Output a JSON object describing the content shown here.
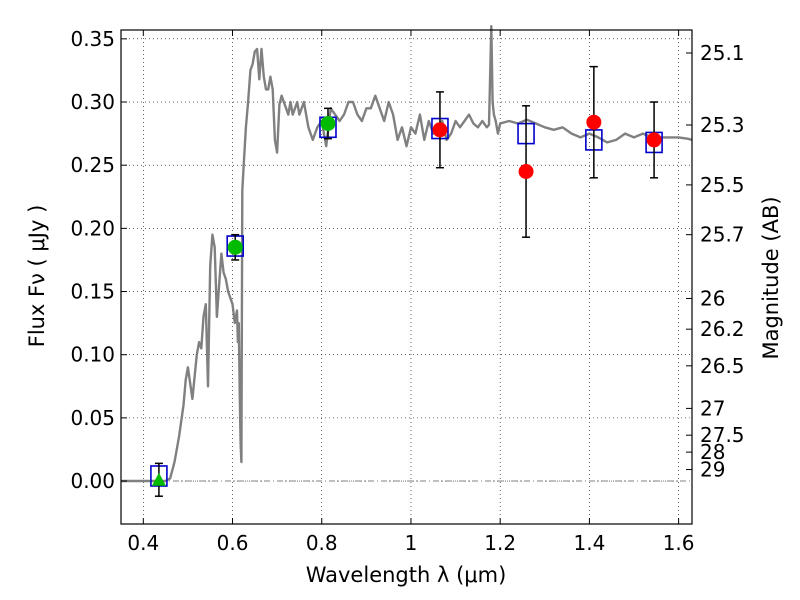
{
  "chart_data": {
    "type": "scatter",
    "xlabel": "Wavelength  λ (μm)",
    "ylabel": "Flux  Fν  ( μJy )",
    "ylabel_right": "Magnitude (AB)",
    "xlim": [
      0.35,
      1.63
    ],
    "ylim": [
      -0.034,
      0.357
    ],
    "x_ticks": [
      0.4,
      0.6,
      0.8,
      1.0,
      1.2,
      1.4,
      1.6
    ],
    "x_tick_labels": [
      "0.4",
      "0.6",
      "0.8",
      "1",
      "1.2",
      "1.4",
      "1.6"
    ],
    "y_ticks": [
      0.0,
      0.05,
      0.1,
      0.15,
      0.2,
      0.25,
      0.3,
      0.35
    ],
    "y_tick_labels": [
      "0.00",
      "0.05",
      "0.10",
      "0.15",
      "0.20",
      "0.25",
      "0.30",
      "0.35"
    ],
    "mag_ticks": [
      {
        "label": "25.1",
        "flux": 0.3388
      },
      {
        "label": "25.3",
        "flux": 0.2818
      },
      {
        "label": "25.5",
        "flux": 0.2344
      },
      {
        "label": "25.7",
        "flux": 0.195
      },
      {
        "label": "26",
        "flux": 0.1445
      },
      {
        "label": "26.2",
        "flux": 0.1202
      },
      {
        "label": "26.5",
        "flux": 0.0912
      },
      {
        "label": "27",
        "flux": 0.0575
      },
      {
        "label": "27.5",
        "flux": 0.0363
      },
      {
        "label": "28",
        "flux": 0.0229
      },
      {
        "label": "29",
        "flux": 0.0091
      }
    ],
    "grid": true,
    "colors": {
      "model": "#808080",
      "model_box": "#0000cc",
      "detection_optical": "#00bb00",
      "detection_nir": "#ff0000",
      "errorbar": "#000000",
      "zero_line": "#808080"
    },
    "model_spectrum": {
      "name": "SED model",
      "x": [
        0.35,
        0.45,
        0.46,
        0.47,
        0.48,
        0.49,
        0.495,
        0.5,
        0.51,
        0.52,
        0.525,
        0.53,
        0.535,
        0.54,
        0.545,
        0.55,
        0.555,
        0.56,
        0.565,
        0.57,
        0.575,
        0.58,
        0.585,
        0.59,
        0.595,
        0.6,
        0.605,
        0.61,
        0.612,
        0.614,
        0.616,
        0.618,
        0.62,
        0.622,
        0.625,
        0.63,
        0.635,
        0.64,
        0.645,
        0.65,
        0.655,
        0.66,
        0.665,
        0.67,
        0.675,
        0.68,
        0.685,
        0.69,
        0.695,
        0.7,
        0.705,
        0.71,
        0.715,
        0.72,
        0.725,
        0.73,
        0.735,
        0.74,
        0.745,
        0.75,
        0.76,
        0.77,
        0.78,
        0.79,
        0.8,
        0.81,
        0.82,
        0.83,
        0.84,
        0.85,
        0.86,
        0.87,
        0.88,
        0.89,
        0.9,
        0.91,
        0.92,
        0.93,
        0.94,
        0.95,
        0.96,
        0.97,
        0.98,
        0.99,
        1.0,
        1.01,
        1.02,
        1.03,
        1.04,
        1.05,
        1.06,
        1.07,
        1.08,
        1.09,
        1.1,
        1.11,
        1.12,
        1.13,
        1.14,
        1.15,
        1.16,
        1.17,
        1.175,
        1.18,
        1.183,
        1.186,
        1.19,
        1.195,
        1.2,
        1.22,
        1.24,
        1.26,
        1.28,
        1.3,
        1.32,
        1.34,
        1.36,
        1.38,
        1.4,
        1.42,
        1.44,
        1.46,
        1.48,
        1.5,
        1.52,
        1.54,
        1.56,
        1.58,
        1.6,
        1.62,
        1.63
      ],
      "y": [
        0.0,
        0.0,
        0.002,
        0.015,
        0.035,
        0.06,
        0.08,
        0.09,
        0.065,
        0.1,
        0.11,
        0.105,
        0.13,
        0.14,
        0.075,
        0.17,
        0.195,
        0.185,
        0.13,
        0.155,
        0.18,
        0.165,
        0.16,
        0.15,
        0.145,
        0.14,
        0.125,
        0.135,
        0.11,
        0.125,
        0.07,
        0.03,
        0.015,
        0.23,
        0.25,
        0.28,
        0.3,
        0.325,
        0.33,
        0.34,
        0.342,
        0.318,
        0.342,
        0.32,
        0.31,
        0.31,
        0.32,
        0.31,
        0.27,
        0.26,
        0.298,
        0.305,
        0.3,
        0.295,
        0.29,
        0.3,
        0.29,
        0.295,
        0.3,
        0.29,
        0.3,
        0.28,
        0.27,
        0.28,
        0.285,
        0.265,
        0.295,
        0.29,
        0.285,
        0.29,
        0.3,
        0.3,
        0.29,
        0.285,
        0.295,
        0.295,
        0.305,
        0.295,
        0.285,
        0.3,
        0.29,
        0.27,
        0.28,
        0.265,
        0.28,
        0.275,
        0.29,
        0.27,
        0.285,
        0.275,
        0.28,
        0.285,
        0.27,
        0.275,
        0.285,
        0.28,
        0.285,
        0.29,
        0.283,
        0.28,
        0.285,
        0.28,
        0.282,
        0.36,
        0.3,
        0.29,
        0.285,
        0.275,
        0.283,
        0.285,
        0.283,
        0.286,
        0.283,
        0.28,
        0.278,
        0.28,
        0.275,
        0.272,
        0.275,
        0.272,
        0.268,
        0.27,
        0.275,
        0.272,
        0.275,
        0.272,
        0.272,
        0.272,
        0.272,
        0.271,
        0.27
      ]
    },
    "model_photometry": {
      "name": "Model photometry",
      "x": [
        0.435,
        0.606,
        0.814,
        1.065,
        1.258,
        1.41,
        1.545
      ],
      "y": [
        0.004,
        0.186,
        0.28,
        0.279,
        0.275,
        0.27,
        0.268
      ]
    },
    "observed": [
      {
        "x": 0.435,
        "y": 0.001,
        "err": 0.013,
        "color": "green",
        "marker": "triangle"
      },
      {
        "x": 0.606,
        "y": 0.185,
        "err": 0.01,
        "color": "green",
        "marker": "circle"
      },
      {
        "x": 0.814,
        "y": 0.283,
        "err": 0.012,
        "color": "green",
        "marker": "circle"
      },
      {
        "x": 1.065,
        "y": 0.278,
        "err": 0.03,
        "color": "red",
        "marker": "circle"
      },
      {
        "x": 1.258,
        "y": 0.245,
        "err": 0.052,
        "color": "red",
        "marker": "circle"
      },
      {
        "x": 1.41,
        "y": 0.284,
        "err": 0.044,
        "color": "red",
        "marker": "circle"
      },
      {
        "x": 1.545,
        "y": 0.27,
        "err": 0.03,
        "color": "red",
        "marker": "circle"
      }
    ]
  }
}
